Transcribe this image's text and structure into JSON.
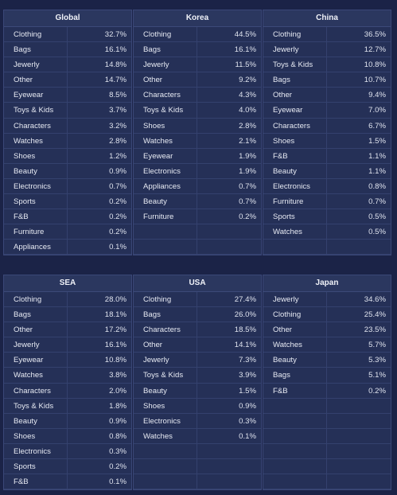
{
  "top_regions": [
    {
      "name": "Global",
      "rows": [
        {
          "label": "Clothing",
          "value": "32.7%"
        },
        {
          "label": "Bags",
          "value": "16.1%"
        },
        {
          "label": "Jewerly",
          "value": "14.8%"
        },
        {
          "label": "Other",
          "value": "14.7%"
        },
        {
          "label": "Eyewear",
          "value": "8.5%"
        },
        {
          "label": "Toys & Kids",
          "value": "3.7%"
        },
        {
          "label": "Characters",
          "value": "3.2%"
        },
        {
          "label": "Watches",
          "value": "2.8%"
        },
        {
          "label": "Shoes",
          "value": "1.2%"
        },
        {
          "label": "Beauty",
          "value": "0.9%"
        },
        {
          "label": "Electronics",
          "value": "0.7%"
        },
        {
          "label": "Sports",
          "value": "0.2%"
        },
        {
          "label": "F&B",
          "value": "0.2%"
        },
        {
          "label": "Furniture",
          "value": "0.2%"
        },
        {
          "label": "Appliances",
          "value": "0.1%"
        }
      ]
    },
    {
      "name": "Korea",
      "rows": [
        {
          "label": "Clothing",
          "value": "44.5%"
        },
        {
          "label": "Bags",
          "value": "16.1%"
        },
        {
          "label": "Jewerly",
          "value": "11.5%"
        },
        {
          "label": "Other",
          "value": "9.2%"
        },
        {
          "label": "Characters",
          "value": "4.3%"
        },
        {
          "label": "Toys & Kids",
          "value": "4.0%"
        },
        {
          "label": "Shoes",
          "value": "2.8%"
        },
        {
          "label": "Watches",
          "value": "2.1%"
        },
        {
          "label": "Eyewear",
          "value": "1.9%"
        },
        {
          "label": "Electronics",
          "value": "1.9%"
        },
        {
          "label": "Appliances",
          "value": "0.7%"
        },
        {
          "label": "Beauty",
          "value": "0.7%"
        },
        {
          "label": "Furniture",
          "value": "0.2%"
        },
        {
          "label": "",
          "value": ""
        },
        {
          "label": "",
          "value": ""
        }
      ]
    },
    {
      "name": "China",
      "rows": [
        {
          "label": "Clothing",
          "value": "36.5%"
        },
        {
          "label": "Jewerly",
          "value": "12.7%"
        },
        {
          "label": "Toys & Kids",
          "value": "10.8%"
        },
        {
          "label": "Bags",
          "value": "10.7%"
        },
        {
          "label": "Other",
          "value": "9.4%"
        },
        {
          "label": "Eyewear",
          "value": "7.0%"
        },
        {
          "label": "Characters",
          "value": "6.7%"
        },
        {
          "label": "Shoes",
          "value": "1.5%"
        },
        {
          "label": "F&B",
          "value": "1.1%"
        },
        {
          "label": "Beauty",
          "value": "1.1%"
        },
        {
          "label": "Electronics",
          "value": "0.8%"
        },
        {
          "label": "Furniture",
          "value": "0.7%"
        },
        {
          "label": "Sports",
          "value": "0.5%"
        },
        {
          "label": "Watches",
          "value": "0.5%"
        },
        {
          "label": "",
          "value": ""
        }
      ]
    }
  ],
  "bottom_regions": [
    {
      "name": "SEA",
      "rows": [
        {
          "label": "Clothing",
          "value": "28.0%"
        },
        {
          "label": "Bags",
          "value": "18.1%"
        },
        {
          "label": "Other",
          "value": "17.2%"
        },
        {
          "label": "Jewerly",
          "value": "16.1%"
        },
        {
          "label": "Eyewear",
          "value": "10.8%"
        },
        {
          "label": "Watches",
          "value": "3.8%"
        },
        {
          "label": "Characters",
          "value": "2.0%"
        },
        {
          "label": "Toys & Kids",
          "value": "1.8%"
        },
        {
          "label": "Beauty",
          "value": "0.9%"
        },
        {
          "label": "Shoes",
          "value": "0.8%"
        },
        {
          "label": "Electronics",
          "value": "0.3%"
        },
        {
          "label": "Sports",
          "value": "0.2%"
        },
        {
          "label": "F&B",
          "value": "0.1%"
        }
      ]
    },
    {
      "name": "USA",
      "rows": [
        {
          "label": "Clothing",
          "value": "27.4%"
        },
        {
          "label": "Bags",
          "value": "26.0%"
        },
        {
          "label": "Characters",
          "value": "18.5%"
        },
        {
          "label": "Other",
          "value": "14.1%"
        },
        {
          "label": "Jewerly",
          "value": "7.3%"
        },
        {
          "label": "Toys & Kids",
          "value": "3.9%"
        },
        {
          "label": "Beauty",
          "value": "1.5%"
        },
        {
          "label": "Shoes",
          "value": "0.9%"
        },
        {
          "label": "Electronics",
          "value": "0.3%"
        },
        {
          "label": "Watches",
          "value": "0.1%"
        },
        {
          "label": "",
          "value": ""
        },
        {
          "label": "",
          "value": ""
        },
        {
          "label": "",
          "value": ""
        }
      ]
    },
    {
      "name": "Japan",
      "rows": [
        {
          "label": "Jewerly",
          "value": "34.6%"
        },
        {
          "label": "Clothing",
          "value": "25.4%"
        },
        {
          "label": "Other",
          "value": "23.5%"
        },
        {
          "label": "Watches",
          "value": "5.7%"
        },
        {
          "label": "Beauty",
          "value": "5.3%"
        },
        {
          "label": "Bags",
          "value": "5.1%"
        },
        {
          "label": "F&B",
          "value": "0.2%"
        },
        {
          "label": "",
          "value": ""
        },
        {
          "label": "",
          "value": ""
        },
        {
          "label": "",
          "value": ""
        },
        {
          "label": "",
          "value": ""
        },
        {
          "label": "",
          "value": ""
        },
        {
          "label": "",
          "value": ""
        }
      ]
    }
  ]
}
